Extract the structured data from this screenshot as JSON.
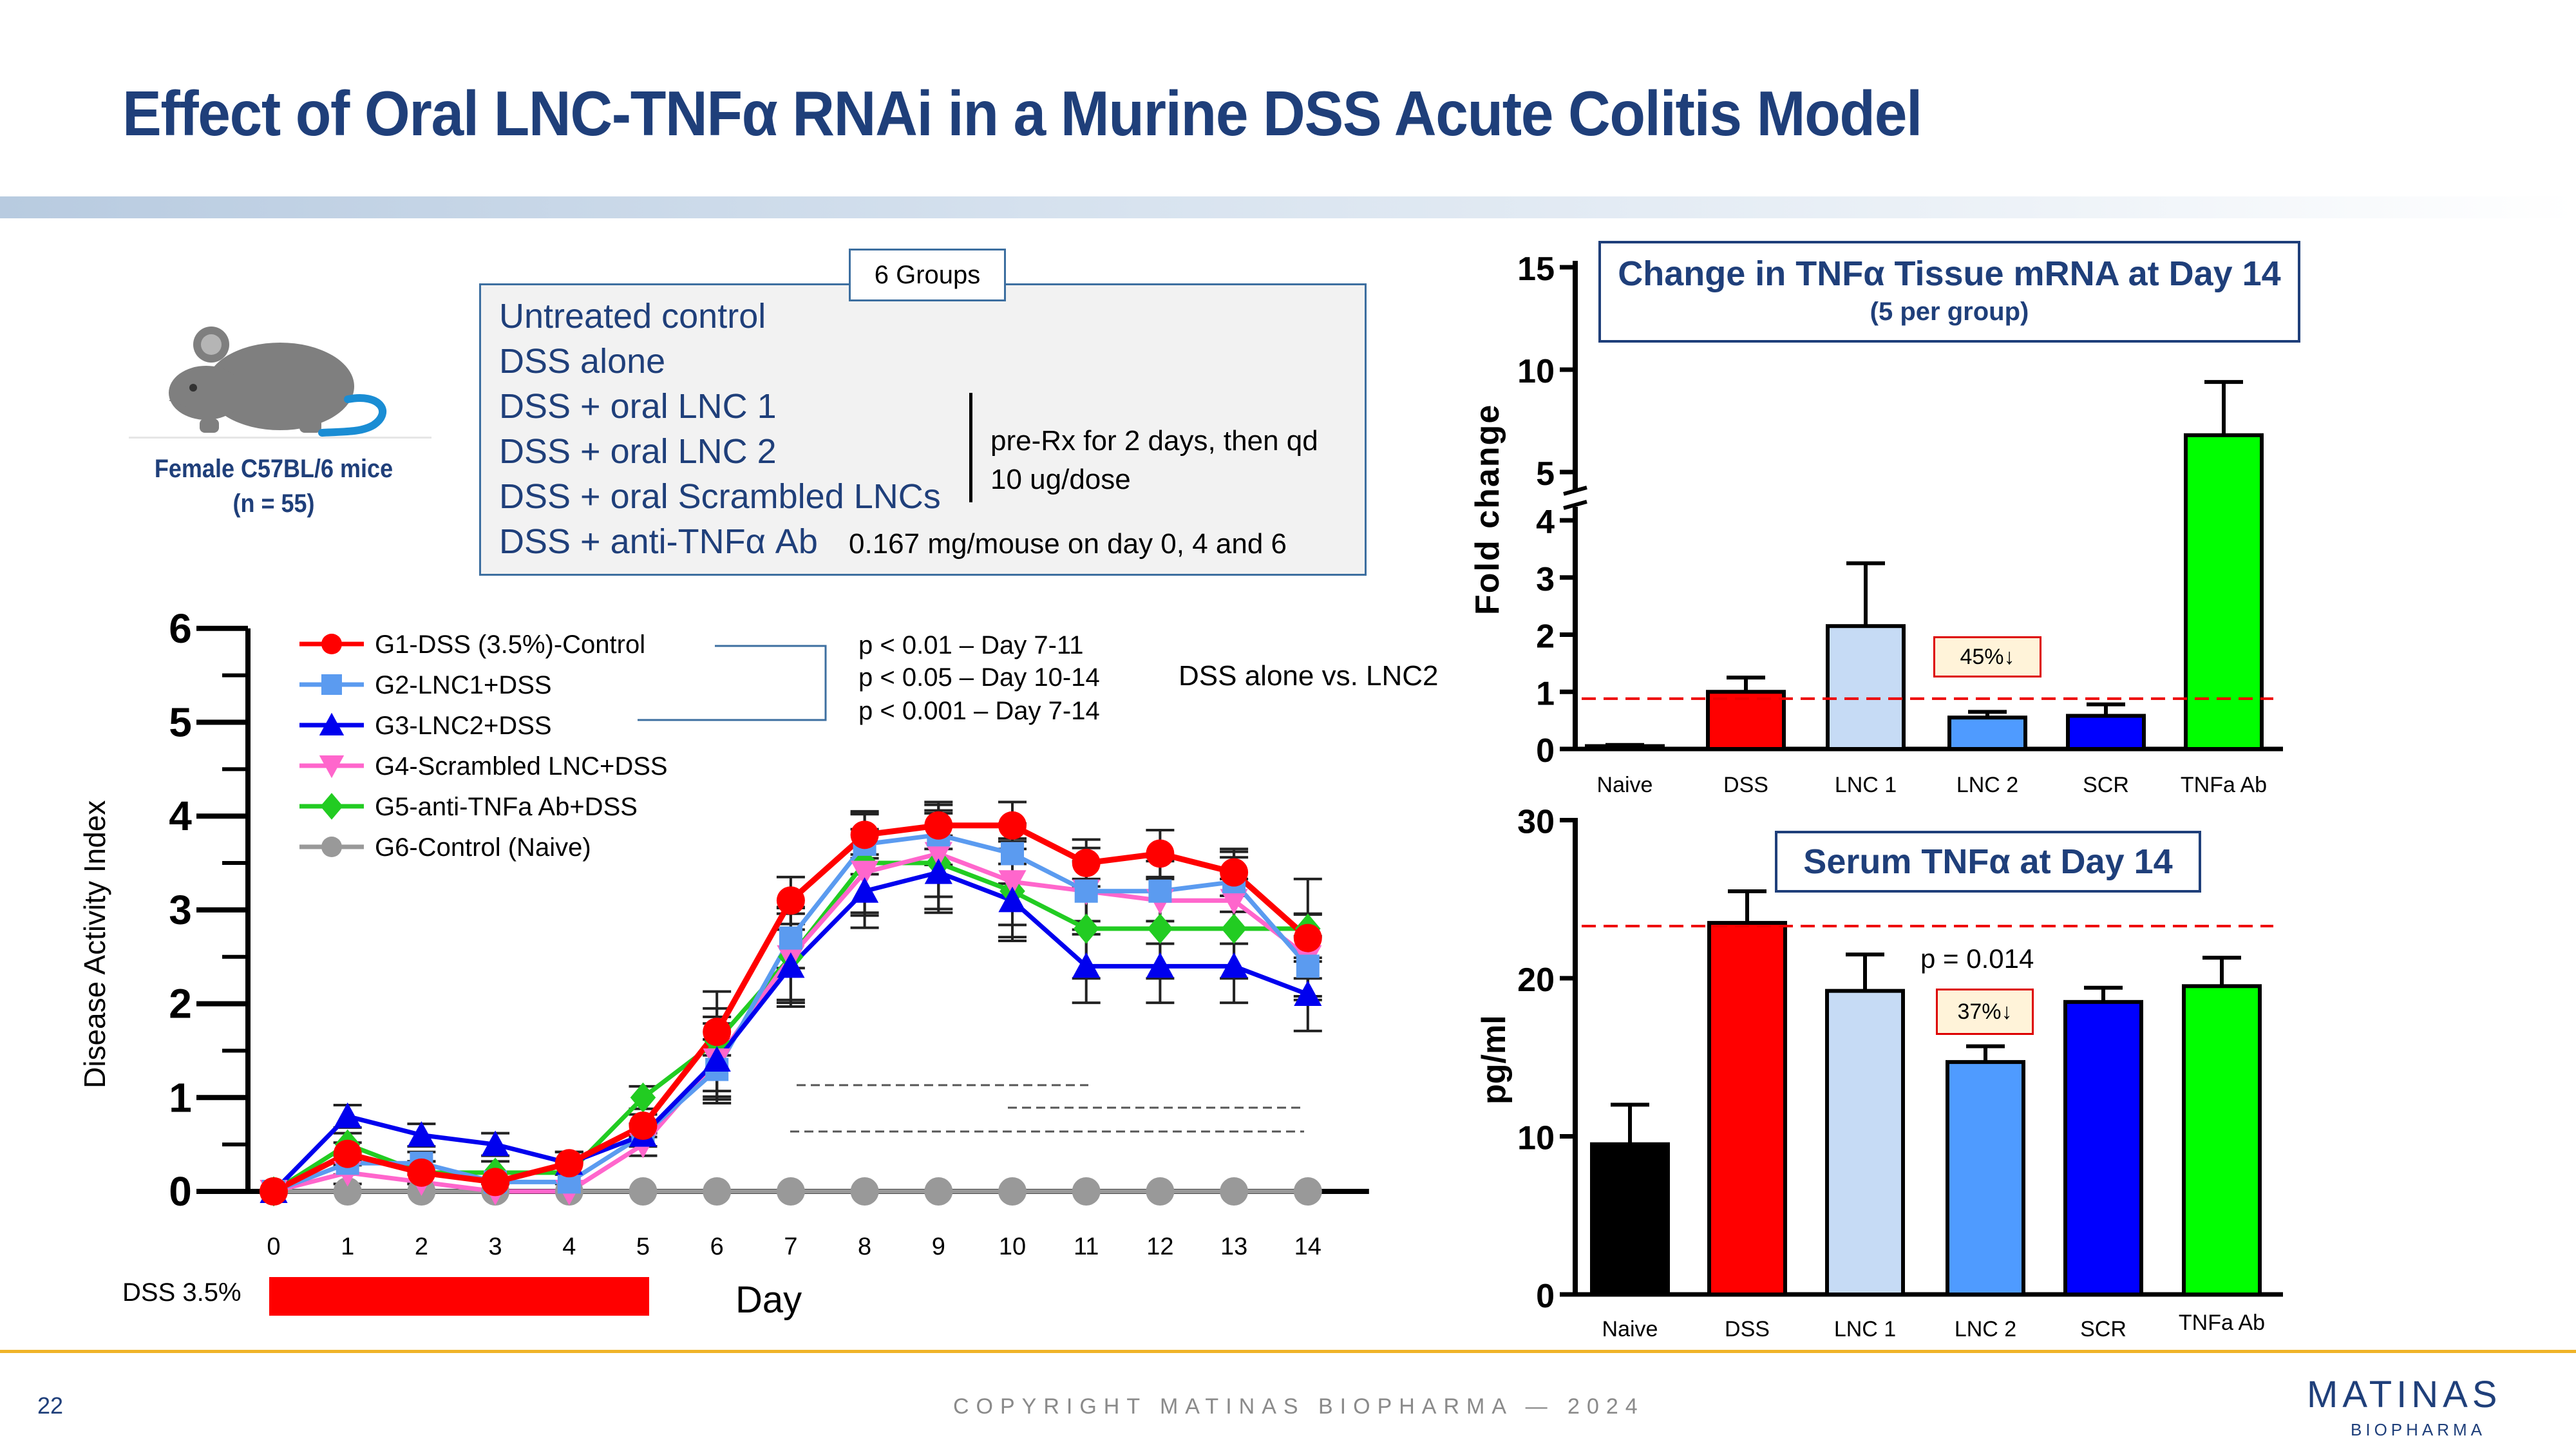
{
  "title": "Effect of Oral LNC-TNFα RNAi in a Murine DSS Acute Colitis Model",
  "mouse": {
    "line1": "Female C57BL/6 mice",
    "line2": "(n = 55)",
    "icon": "mouse-icon"
  },
  "groups": {
    "tab_label": "6 Groups",
    "items": [
      "Untreated control",
      "DSS alone",
      "DSS + oral LNC 1",
      "DSS + oral LNC 2",
      "DSS + oral Scrambled LNCs",
      "DSS + anti-TNFα Ab"
    ],
    "note_prerx_1": "pre-Rx for 2 days, then qd",
    "note_prerx_2": "10 ug/dose",
    "note_ab": "0.167 mg/mouse on day 0, 4 and 6"
  },
  "annotations": {
    "p1": "p < 0.01  –  Day 7-11",
    "p2": "p < 0.05   – Day 10-14",
    "p3": "p < 0.001 – Day 7-14",
    "comparison": "DSS alone vs. LNC2",
    "dss_label": "DSS 3.5%",
    "mrna_reduction": "45%↓",
    "serum_reduction": "37%↓",
    "serum_p": "p = 0.014"
  },
  "colors": {
    "title": "#1f3f7a",
    "dss": "#ff0000",
    "lnc1": "#c6dbf5",
    "lnc2": "#4f9bff",
    "scr": "#0000ff",
    "ab": "#00ff00",
    "naive": "#000000",
    "footer_line": "#f0b429"
  },
  "footer": {
    "page": "22",
    "copyright": "COPYRIGHT MATINAS BIOPHARMA — 2024",
    "logo": "MATINAS",
    "logo_sub": "BIOPHARMA"
  },
  "chart_data": [
    {
      "type": "line",
      "xlabel": "Day",
      "ylabel": "Disease Activity Index",
      "x": [
        0,
        1,
        2,
        3,
        4,
        5,
        6,
        7,
        8,
        9,
        10,
        11,
        12,
        13,
        14
      ],
      "xlim": [
        0,
        14
      ],
      "ylim": [
        0,
        6
      ],
      "yticks": [
        0,
        1,
        2,
        3,
        4,
        5,
        6
      ],
      "legend_position": "top-left",
      "series": [
        {
          "name": "G1-DSS (3.5%)-Control",
          "color": "#ff0000",
          "marker": "circle",
          "values": [
            0,
            0.4,
            0.2,
            0.1,
            0.3,
            0.7,
            1.7,
            3.1,
            3.8,
            3.9,
            3.9,
            3.5,
            3.6,
            3.4,
            2.7
          ]
        },
        {
          "name": "G2-LNC1+DSS",
          "color": "#5b9bf0",
          "marker": "square",
          "values": [
            0,
            0.3,
            0.3,
            0.1,
            0.1,
            0.6,
            1.3,
            2.7,
            3.7,
            3.8,
            3.6,
            3.2,
            3.2,
            3.3,
            2.4
          ]
        },
        {
          "name": "G3-LNC2+DSS",
          "color": "#0000ee",
          "marker": "triangle",
          "values": [
            0,
            0.8,
            0.6,
            0.5,
            0.3,
            0.6,
            1.4,
            2.4,
            3.2,
            3.4,
            3.1,
            2.4,
            2.4,
            2.4,
            2.1
          ]
        },
        {
          "name": "G4-Scrambled LNC+DSS",
          "color": "#ff66cc",
          "marker": "triangle-down",
          "values": [
            0,
            0.2,
            0.1,
            0,
            0,
            0.5,
            1.4,
            2.5,
            3.4,
            3.6,
            3.3,
            3.2,
            3.1,
            3.1,
            2.5
          ]
        },
        {
          "name": "G5-anti-TNFa Ab+DSS",
          "color": "#22cc22",
          "marker": "diamond",
          "values": [
            0,
            0.5,
            0.2,
            0.2,
            0.2,
            1.0,
            1.6,
            2.5,
            3.5,
            3.5,
            3.2,
            2.8,
            2.8,
            2.8,
            2.8
          ]
        },
        {
          "name": "G6-Control (Naive)",
          "color": "#999999",
          "marker": "circle",
          "values": [
            0,
            0,
            0,
            0,
            0,
            0,
            0,
            0,
            0,
            0,
            0,
            0,
            0,
            0,
            0
          ]
        }
      ],
      "dss_exposure_days": [
        0,
        5
      ]
    },
    {
      "type": "bar",
      "title": "Change in  TNFα Tissue mRNA at Day 14",
      "subtitle": "(5 per group)",
      "ylabel": "Fold change",
      "categories": [
        "Naive",
        "DSS",
        "LNC 1",
        "LNC 2",
        "SCR",
        "TNFa Ab"
      ],
      "values": [
        0.05,
        1.0,
        2.15,
        0.55,
        0.58,
        6.8
      ],
      "errors": [
        0.02,
        0.25,
        1.1,
        0.1,
        0.2,
        2.6
      ],
      "ylim": [
        0,
        15
      ],
      "axis_break": [
        4,
        5
      ],
      "yticks": [
        0,
        1,
        2,
        3,
        4,
        5,
        10,
        15
      ],
      "reference_line": 0.88
    },
    {
      "type": "bar",
      "title": "Serum TNFα at Day 14",
      "ylabel": "pg/ml",
      "categories": [
        "Naive",
        "DSS",
        "LNC 1",
        "LNC 2",
        "SCR",
        "TNFa Ab"
      ],
      "values": [
        9.5,
        23.5,
        19.2,
        14.7,
        18.5,
        19.5
      ],
      "errors": [
        2.5,
        2.0,
        2.3,
        1.0,
        0.9,
        1.8
      ],
      "ylim": [
        0,
        30
      ],
      "yticks": [
        0,
        10,
        20,
        30
      ],
      "reference_line": 23.3
    }
  ]
}
